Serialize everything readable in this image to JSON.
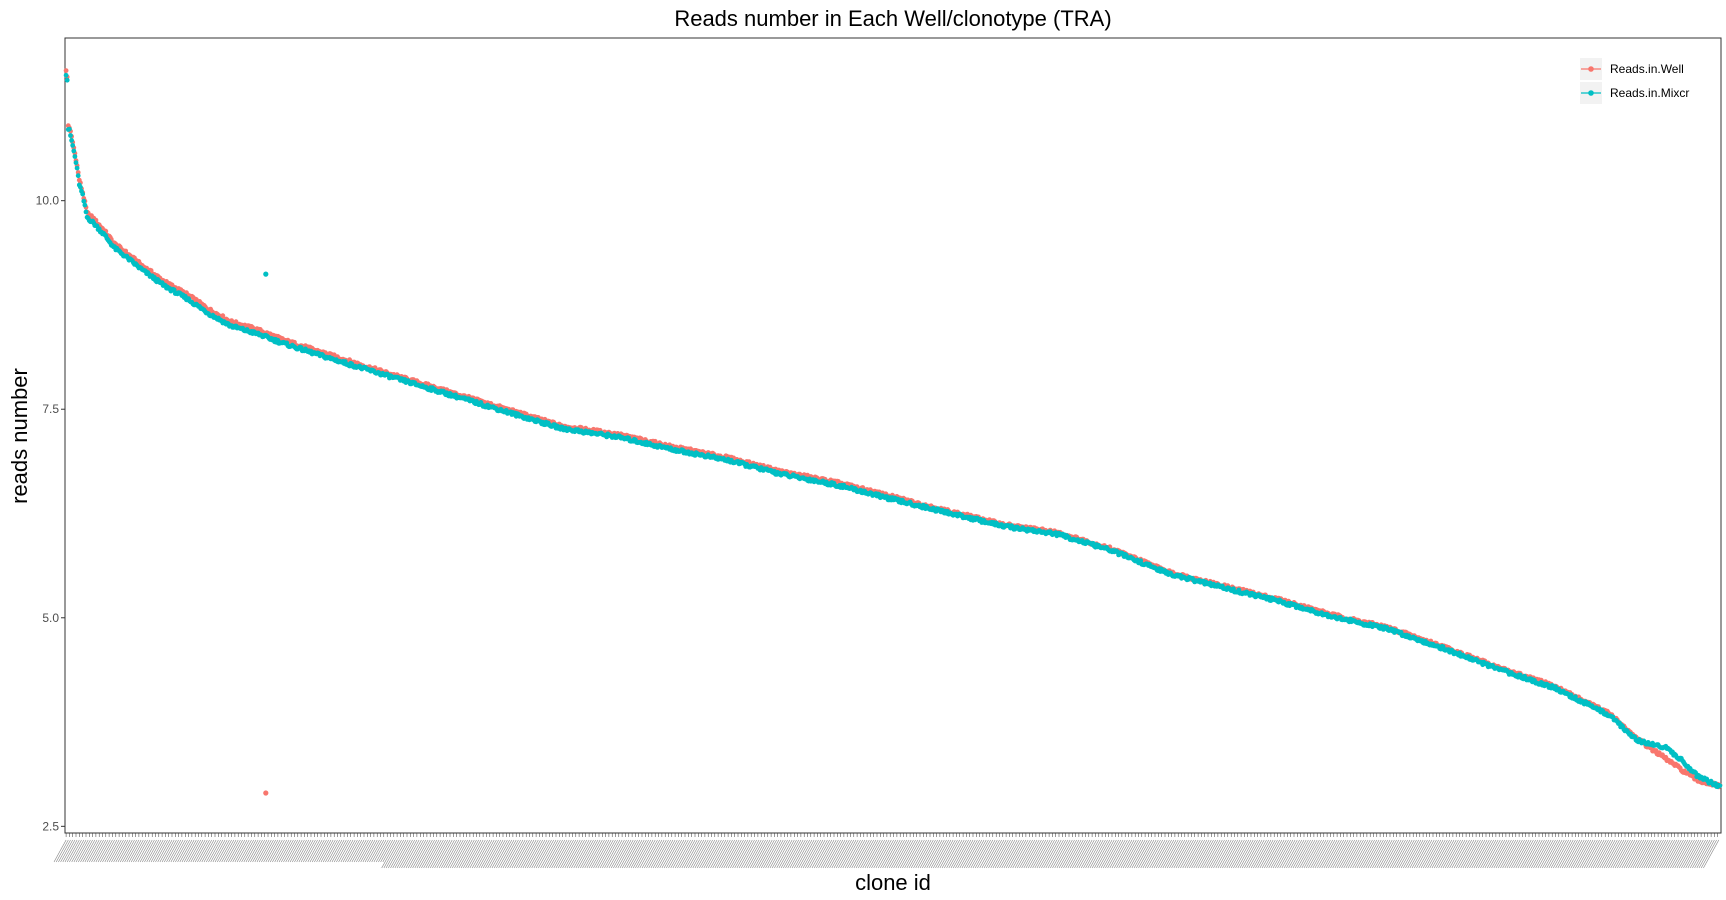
{
  "chart_data": {
    "type": "scatter",
    "title": "Reads number in Each Well/clonotype (TRA)",
    "xlabel": "clone id",
    "ylabel": "reads number",
    "ylim": [
      2.42,
      11.95
    ],
    "yticks": [
      2.5,
      5.0,
      7.5,
      10.0
    ],
    "ytick_labels": [
      "2.5",
      "5.0",
      "7.5",
      "10.0"
    ],
    "x_ticks": "dense overlapping clone-id labels (unreadable)",
    "n_clones": 1500,
    "grid": false,
    "legend_position": "top-right",
    "series": [
      {
        "name": "Reads.in.Well",
        "color": "#F8766D",
        "points": [
          [
            1,
            11.55
          ],
          [
            2,
            11.48
          ],
          [
            3,
            10.9
          ],
          [
            4,
            10.88
          ],
          [
            5,
            10.82
          ],
          [
            7,
            10.7
          ],
          [
            10,
            10.5
          ],
          [
            13,
            10.25
          ],
          [
            16,
            10.1
          ],
          [
            20,
            9.85
          ],
          [
            26,
            9.78
          ],
          [
            35,
            9.65
          ],
          [
            45,
            9.48
          ],
          [
            55,
            9.38
          ],
          [
            70,
            9.22
          ],
          [
            90,
            9.03
          ],
          [
            110,
            8.88
          ],
          [
            130,
            8.7
          ],
          [
            150,
            8.55
          ],
          [
            175,
            8.45
          ],
          [
            182,
            2.9
          ],
          [
            200,
            8.32
          ],
          [
            240,
            8.15
          ],
          [
            300,
            7.9
          ],
          [
            350,
            7.7
          ],
          [
            400,
            7.5
          ],
          [
            450,
            7.3
          ],
          [
            500,
            7.2
          ],
          [
            550,
            7.05
          ],
          [
            600,
            6.92
          ],
          [
            650,
            6.75
          ],
          [
            700,
            6.62
          ],
          [
            750,
            6.45
          ],
          [
            800,
            6.28
          ],
          [
            850,
            6.12
          ],
          [
            900,
            6.02
          ],
          [
            950,
            5.82
          ],
          [
            1000,
            5.55
          ],
          [
            1050,
            5.38
          ],
          [
            1100,
            5.22
          ],
          [
            1150,
            5.03
          ],
          [
            1200,
            4.88
          ],
          [
            1250,
            4.65
          ],
          [
            1300,
            4.4
          ],
          [
            1350,
            4.18
          ],
          [
            1400,
            3.85
          ],
          [
            1425,
            3.55
          ],
          [
            1450,
            3.32
          ],
          [
            1465,
            3.18
          ],
          [
            1480,
            3.05
          ],
          [
            1500,
            2.98
          ]
        ]
      },
      {
        "name": "Reads.in.Mixcr",
        "color": "#00BFC4",
        "points": [
          [
            1,
            11.52
          ],
          [
            2,
            11.45
          ],
          [
            3,
            10.86
          ],
          [
            4,
            10.84
          ],
          [
            5,
            10.78
          ],
          [
            7,
            10.66
          ],
          [
            10,
            10.46
          ],
          [
            13,
            10.2
          ],
          [
            16,
            10.06
          ],
          [
            20,
            9.8
          ],
          [
            26,
            9.73
          ],
          [
            35,
            9.6
          ],
          [
            45,
            9.43
          ],
          [
            55,
            9.33
          ],
          [
            70,
            9.17
          ],
          [
            90,
            8.98
          ],
          [
            110,
            8.83
          ],
          [
            130,
            8.65
          ],
          [
            150,
            8.5
          ],
          [
            175,
            8.4
          ],
          [
            182,
            9.12
          ],
          [
            200,
            8.28
          ],
          [
            240,
            8.11
          ],
          [
            300,
            7.87
          ],
          [
            350,
            7.67
          ],
          [
            400,
            7.47
          ],
          [
            450,
            7.27
          ],
          [
            500,
            7.17
          ],
          [
            550,
            7.02
          ],
          [
            600,
            6.89
          ],
          [
            650,
            6.72
          ],
          [
            700,
            6.59
          ],
          [
            750,
            6.42
          ],
          [
            800,
            6.26
          ],
          [
            850,
            6.1
          ],
          [
            900,
            6.0
          ],
          [
            950,
            5.8
          ],
          [
            1000,
            5.53
          ],
          [
            1050,
            5.36
          ],
          [
            1100,
            5.2
          ],
          [
            1150,
            5.01
          ],
          [
            1200,
            4.86
          ],
          [
            1250,
            4.63
          ],
          [
            1300,
            4.38
          ],
          [
            1350,
            4.16
          ],
          [
            1400,
            3.83
          ],
          [
            1425,
            3.53
          ],
          [
            1450,
            3.45
          ],
          [
            1465,
            3.3
          ],
          [
            1480,
            3.1
          ],
          [
            1500,
            2.97
          ]
        ]
      }
    ]
  }
}
